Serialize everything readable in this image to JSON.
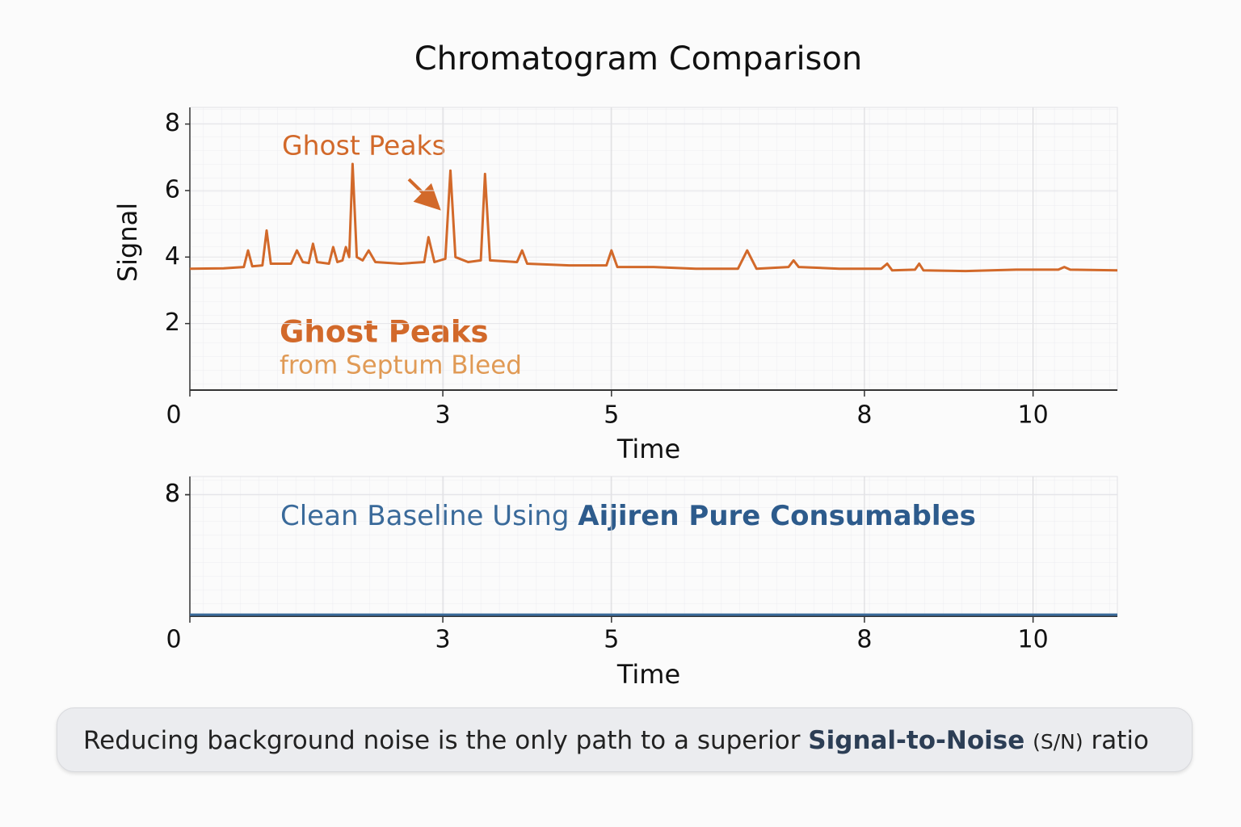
{
  "chart_data": [
    {
      "type": "line",
      "title": "Chromatogram Comparison",
      "xlabel": "Time",
      "ylabel": "Signal",
      "xlim": [
        0,
        11
      ],
      "xticks": [
        0,
        3,
        5,
        8,
        10
      ],
      "ylim": [
        0,
        8.5
      ],
      "yticks": [
        8,
        6,
        4,
        2
      ],
      "grid": true,
      "annotations": {
        "arrow_text": "Ghost Peaks",
        "heading": "Ghost Peaks",
        "subheading": "from Septum Bleed"
      },
      "series": [
        {
          "name": "Ghost Peaks",
          "color": "#d2692a",
          "x": [
            0,
            0.4,
            0.64,
            0.69,
            0.74,
            0.86,
            0.91,
            0.96,
            1.2,
            1.27,
            1.34,
            1.41,
            1.46,
            1.51,
            1.65,
            1.7,
            1.75,
            1.81,
            1.85,
            1.89,
            1.93,
            1.98,
            2.05,
            2.12,
            2.2,
            2.5,
            2.78,
            2.83,
            2.9,
            3.03,
            3.09,
            3.15,
            3.3,
            3.45,
            3.5,
            3.56,
            3.88,
            3.94,
            4.0,
            4.5,
            4.94,
            5.0,
            5.07,
            5.5,
            6.0,
            6.5,
            6.61,
            6.72,
            7.1,
            7.16,
            7.22,
            7.7,
            8.2,
            8.27,
            8.33,
            8.6,
            8.65,
            8.7,
            9.2,
            9.8,
            10.3,
            10.37,
            10.44,
            11
          ],
          "values": [
            3.65,
            3.66,
            3.7,
            4.2,
            3.72,
            3.75,
            4.8,
            3.8,
            3.8,
            4.2,
            3.85,
            3.82,
            4.4,
            3.85,
            3.8,
            4.3,
            3.85,
            3.9,
            4.3,
            4.0,
            6.8,
            4.0,
            3.9,
            4.2,
            3.85,
            3.8,
            3.85,
            4.6,
            3.85,
            3.95,
            6.6,
            4.0,
            3.85,
            3.9,
            6.5,
            3.9,
            3.85,
            4.2,
            3.8,
            3.75,
            3.75,
            4.2,
            3.7,
            3.7,
            3.65,
            3.65,
            4.2,
            3.65,
            3.7,
            3.9,
            3.7,
            3.65,
            3.65,
            3.8,
            3.6,
            3.62,
            3.8,
            3.6,
            3.58,
            3.62,
            3.62,
            3.7,
            3.62,
            3.6
          ]
        }
      ]
    },
    {
      "type": "line",
      "xlabel": "Time",
      "xlim": [
        0,
        11
      ],
      "xticks": [
        0,
        3,
        5,
        8,
        10
      ],
      "ylim": [
        0,
        9.2
      ],
      "yticks": [
        8,
        8
      ],
      "grid": true,
      "annotations": {
        "text": "Clean Baseline Using",
        "emphasis": "Aijiren Pure Consumables"
      },
      "series": [
        {
          "name": "Clean Baseline",
          "color": "#3a6a9a",
          "x": [
            0,
            3,
            5,
            8,
            11
          ],
          "values": [
            0.1,
            0.1,
            0.1,
            0.1,
            0.1
          ]
        }
      ]
    }
  ],
  "footer": {
    "text": "Reducing background noise is the only path to a superior",
    "emphasis": "Signal-to-Noise",
    "note": "(S/N)",
    "end": "ratio"
  }
}
